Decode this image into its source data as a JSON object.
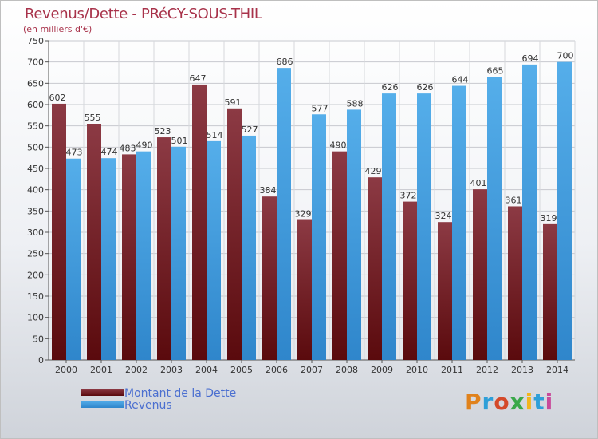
{
  "chart_data": {
    "type": "bar",
    "title": "Revenus/Dette - PRéCY-SOUS-THIL",
    "subtitle": "(en milliers d'€)",
    "categories": [
      "2000",
      "2001",
      "2002",
      "2003",
      "2004",
      "2005",
      "2006",
      "2007",
      "2008",
      "2009",
      "2010",
      "2011",
      "2012",
      "2013",
      "2014"
    ],
    "series": [
      {
        "name": "Montant de la Dette",
        "color": "#7d1f28",
        "values": [
          602,
          555,
          483,
          523,
          647,
          591,
          384,
          329,
          490,
          429,
          372,
          324,
          401,
          361,
          319
        ]
      },
      {
        "name": "Revenus",
        "color": "#4aa3e4",
        "values": [
          473,
          474,
          490,
          501,
          514,
          527,
          686,
          577,
          588,
          626,
          626,
          644,
          665,
          694,
          700
        ]
      }
    ],
    "ylim": [
      0,
      750
    ],
    "yticks": [
      0,
      50,
      100,
      150,
      200,
      250,
      300,
      350,
      400,
      450,
      500,
      550,
      600,
      650,
      700,
      750
    ],
    "grid": true,
    "legend": "bottom-left"
  },
  "logo": {
    "text": "Proxiti"
  }
}
